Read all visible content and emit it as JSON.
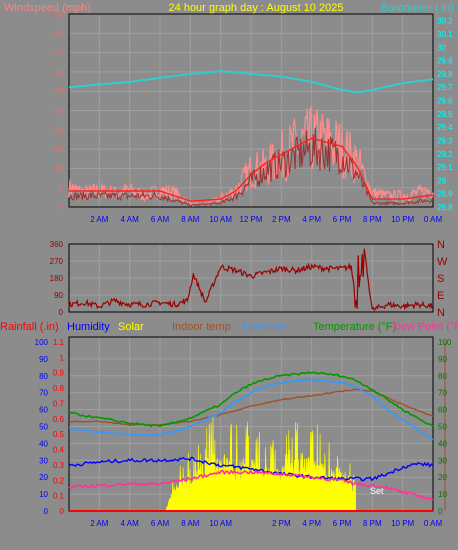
{
  "colors": {
    "background": "#8c8c8c",
    "plot_background": "#8c8c8c",
    "grid": "#a0a0a0",
    "wind_label": "#ff8080",
    "title": "#ffff00",
    "barometer": "#33cccc",
    "baro_ticks": "#00ffff",
    "wind_ticks": "#ff6666",
    "time_ticks": "#0000ff",
    "gust": "#ff8c8c",
    "wind_avg": "#993333",
    "wind_smooth": "#ff2020",
    "direction": "#990000",
    "direction_axis": "#990000",
    "rain": "#ff0000",
    "humidity": "#0000ff",
    "solar": "#ffff00",
    "indoor": "#a05028",
    "humidex": "#3399ff",
    "temperature": "#009900",
    "dewpoint": "#ff3399",
    "right_axis": "#007700",
    "set_label": "#ffffff"
  },
  "chart_data": [
    {
      "type": "line",
      "name": "wind-barometer",
      "title": "24 hour graph day : August 10 2025",
      "left_label": "Windspeed (mph)",
      "right_label": "Barometer (.in)",
      "x_hours": [
        0,
        24
      ],
      "x_ticks": [
        "2 AM",
        "4 AM",
        "6 AM",
        "8 AM",
        "10 AM",
        "12 PM",
        "2 PM",
        "4 PM",
        "6 PM",
        "8 PM",
        "10 PM",
        "0 AM"
      ],
      "y_left_ticks": [
        "0",
        "5",
        "10",
        "15",
        "20",
        "25",
        "30",
        "35",
        "40",
        "45",
        "50"
      ],
      "y_right_ticks": [
        "28.8",
        "28.9",
        "29",
        "29.1",
        "29.2",
        "29.3",
        "29.4",
        "29.5",
        "29.6",
        "29.7",
        "29.8",
        "29.9",
        "30",
        "30.1",
        "30.2"
      ],
      "ylim_left": [
        0,
        50
      ],
      "ylim_right": [
        28.8,
        30.25
      ],
      "barometer": {
        "x": [
          0,
          2,
          4,
          6,
          8,
          10,
          12,
          14,
          15,
          16,
          17,
          18,
          19,
          20,
          22,
          24
        ],
        "y": [
          29.7,
          29.72,
          29.74,
          29.77,
          29.8,
          29.82,
          29.8,
          29.78,
          29.76,
          29.74,
          29.71,
          29.68,
          29.66,
          29.68,
          29.73,
          29.76
        ]
      },
      "wind_envelope": {
        "x": [
          0,
          1,
          2,
          3,
          4,
          5,
          6,
          7,
          8,
          9,
          10,
          11,
          12,
          13,
          14,
          15,
          16,
          17,
          18,
          19,
          20,
          21,
          22,
          23,
          24
        ],
        "y": [
          7,
          5,
          6,
          5,
          6,
          4,
          6,
          5,
          1,
          1,
          3,
          6,
          13,
          14,
          18,
          22,
          24,
          23,
          21,
          16,
          5,
          4,
          4,
          5,
          6
        ]
      },
      "wind_average": {
        "x": [
          0,
          2,
          4,
          6,
          8,
          10,
          11,
          12,
          13,
          14,
          15,
          16,
          17,
          18,
          19,
          20,
          22,
          24
        ],
        "y": [
          3,
          3,
          3,
          3,
          0.5,
          1,
          3,
          7,
          10,
          12,
          14,
          16,
          15,
          14,
          9,
          1,
          1,
          2
        ]
      }
    },
    {
      "type": "scatter",
      "name": "wind-direction",
      "y_ticks": [
        "0",
        "90",
        "180",
        "270",
        "360"
      ],
      "compass_labels": [
        "N",
        "W",
        "S",
        "E",
        "N"
      ],
      "ylim": [
        0,
        360
      ],
      "x": [
        0,
        1,
        2,
        3,
        4,
        5,
        6,
        7,
        7.8,
        8.2,
        9,
        10,
        11,
        12,
        13,
        14,
        15,
        16,
        17,
        18,
        18.6,
        19,
        19.4,
        20,
        21,
        22,
        23,
        24
      ],
      "y": [
        40,
        50,
        30,
        60,
        40,
        40,
        50,
        40,
        60,
        200,
        50,
        240,
        220,
        190,
        210,
        230,
        220,
        240,
        230,
        230,
        240,
        30,
        360,
        10,
        40,
        30,
        40,
        30
      ]
    },
    {
      "type": "line",
      "name": "weather-combined",
      "legend": [
        "Rainfall (.in)",
        "Humidity",
        "Solar",
        "Indoor temp",
        "Humidex",
        "Temperature (°F)",
        "Dew Point (°F)"
      ],
      "x_ticks": [
        "2 AM",
        "4 AM",
        "6 AM",
        "8 AM",
        "10 AM",
        "2 PM",
        "4 PM",
        "6 PM",
        "8 PM",
        "10 PM",
        "0 AM"
      ],
      "y_humidity_ticks": [
        "0",
        "10",
        "20",
        "30",
        "40",
        "50",
        "60",
        "70",
        "80",
        "90",
        "100"
      ],
      "y_rain_ticks": [
        "0",
        "0.1",
        "0.2",
        "0.3",
        "0.4",
        "0.5",
        "0.6",
        "0.7",
        "0.8",
        "0.9",
        "1",
        "1.1"
      ],
      "y_temp_ticks": [
        "0",
        "10",
        "20",
        "30",
        "40",
        "50",
        "60",
        "70",
        "80",
        "90",
        "100"
      ],
      "annotation": "Set",
      "series": [
        {
          "name": "Temperature (°F)",
          "x": [
            0,
            2,
            4,
            6,
            8,
            10,
            11,
            12,
            13,
            14,
            15,
            16,
            17,
            18,
            19,
            20,
            21,
            22,
            23,
            24
          ],
          "y": [
            58,
            55,
            52,
            50,
            55,
            63,
            70,
            75,
            78,
            80,
            81,
            82,
            81,
            80,
            77,
            72,
            66,
            60,
            55,
            50
          ]
        },
        {
          "name": "Humidex",
          "x": [
            0,
            2,
            4,
            6,
            8,
            10,
            11,
            12,
            13,
            14,
            15,
            16,
            17,
            18,
            19,
            20,
            21,
            22,
            23,
            24
          ],
          "y": [
            49,
            47,
            45,
            45,
            50,
            58,
            65,
            70,
            74,
            76,
            77,
            78,
            77,
            76,
            73,
            68,
            60,
            54,
            48,
            42
          ]
        },
        {
          "name": "Indoor temp",
          "x": [
            0,
            2,
            4,
            6,
            8,
            10,
            12,
            14,
            16,
            18,
            19,
            20,
            22,
            24
          ],
          "y": [
            53,
            53,
            51,
            51,
            53,
            57,
            62,
            66,
            68,
            71,
            72,
            71,
            63,
            56
          ]
        },
        {
          "name": "Humidity",
          "x": [
            0,
            2,
            4,
            6,
            8,
            9,
            10,
            12,
            14,
            16,
            18,
            20,
            21,
            22,
            23,
            24
          ],
          "y": [
            27,
            29,
            30,
            30,
            31,
            29,
            27,
            25,
            22,
            20,
            19,
            19,
            22,
            26,
            28,
            27
          ]
        },
        {
          "name": "Dew Point (°F)",
          "x": [
            0,
            2,
            4,
            6,
            8,
            10,
            12,
            14,
            16,
            18,
            19,
            20,
            21,
            22,
            23,
            24
          ],
          "y": [
            14,
            15,
            16,
            16,
            19,
            23,
            23,
            22,
            20,
            18,
            16,
            15,
            14,
            11,
            9,
            7
          ]
        },
        {
          "name": "Solar",
          "x": [
            0,
            6.4,
            6.5,
            7,
            8,
            9,
            10,
            11,
            12,
            13,
            14,
            15,
            16,
            17,
            18,
            18.9,
            19,
            24
          ],
          "y": [
            0,
            0,
            5,
            18,
            25,
            35,
            40,
            35,
            38,
            30,
            28,
            40,
            38,
            30,
            28,
            20,
            0,
            0
          ]
        },
        {
          "name": "Rainfall (.in)",
          "x": [
            0,
            24
          ],
          "y": [
            0,
            0
          ]
        }
      ]
    }
  ]
}
